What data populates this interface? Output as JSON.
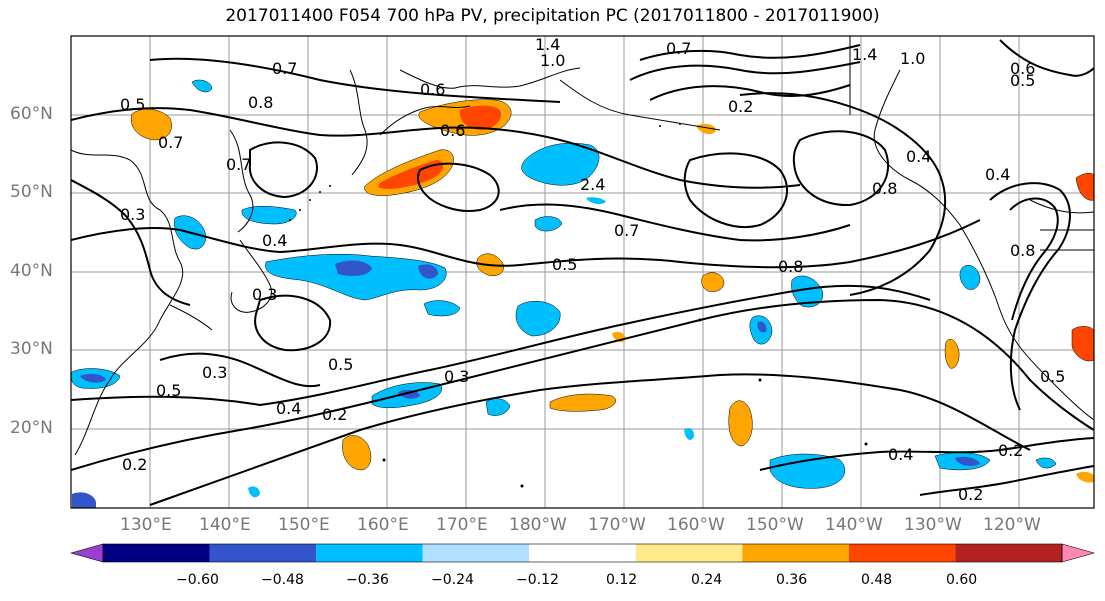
{
  "title": "2017011400 F054 700 hPa PV, precipitation PC (2017011800 - 2017011900)",
  "lat_labels": [
    "60°N",
    "50°N",
    "40°N",
    "30°N",
    "20°N"
  ],
  "lon_labels": [
    "130°E",
    "140°E",
    "150°E",
    "160°E",
    "170°E",
    "180°W",
    "170°W",
    "160°W",
    "150°W",
    "140°W",
    "130°W",
    "120°W"
  ],
  "colorbar": {
    "colors": [
      "#9b3fcf",
      "#000080",
      "#3355cc",
      "#00bfff",
      "#b0e0ff",
      "#ffffff",
      "#ffe98a",
      "#ffa500",
      "#ff4500",
      "#b22222",
      "#ff88b0"
    ],
    "tick_labels": [
      "−0.60",
      "−0.48",
      "−0.36",
      "−0.24",
      "−0.12",
      "0.12",
      "0.24",
      "0.36",
      "0.48",
      "0.60"
    ]
  },
  "contour_labels": [
    "0.7",
    "0.6",
    "0.6",
    "0.8",
    "0.5",
    "0.7",
    "0.7",
    "0.3",
    "0.4",
    "0.3",
    "0.3",
    "0.5",
    "0.5",
    "0.4",
    "0.2",
    "0.3",
    "0.2",
    "0.7",
    "0.5",
    "0.8",
    "0.4",
    "0.2",
    "0.2",
    "0.5",
    "1.4",
    "1.0",
    "1.4",
    "1.0",
    "0.8",
    "0.4",
    "0.6",
    "0.4",
    "0.5",
    "0.8",
    "2.4",
    "0.2",
    "0.7"
  ]
}
